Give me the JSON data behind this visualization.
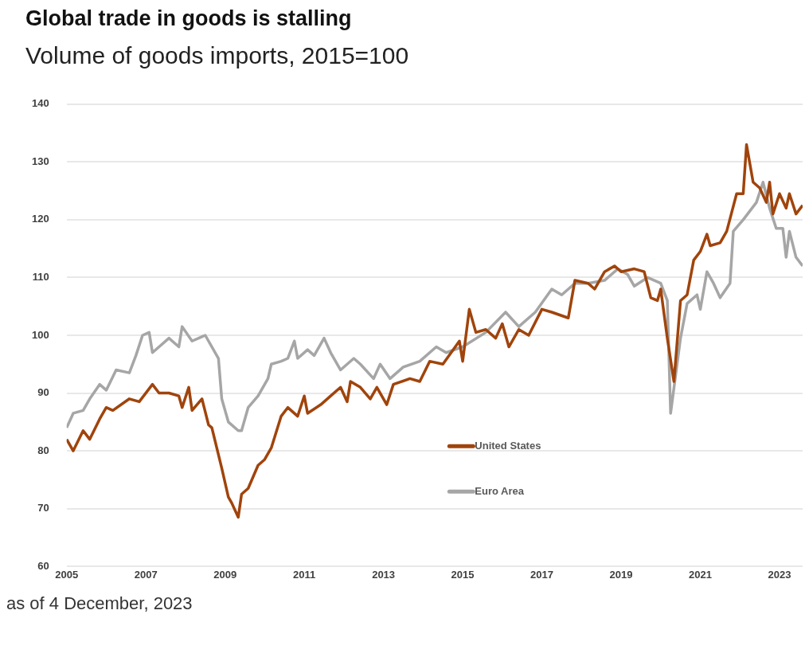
{
  "chart_data": {
    "type": "line",
    "title": "Global trade in goods is stalling",
    "subtitle": "Volume of goods imports, 2015=100",
    "xlim": [
      "2005-01",
      "2023-08"
    ],
    "xticks": [
      "2005",
      "2007",
      "2009",
      "2011",
      "2013",
      "2015",
      "2017",
      "2019",
      "2021",
      "2023"
    ],
    "ylim": [
      60,
      140
    ],
    "yticks": [
      60,
      70,
      80,
      90,
      100,
      110,
      120,
      130,
      140
    ],
    "grid": "y",
    "legend": "bottom",
    "marker": "none",
    "annotations": [
      "as of 4 December, 2023"
    ],
    "series": [
      {
        "name": "United States",
        "color": "#a0440c",
        "x": [
          "2005-01",
          "2005-03",
          "2005-06",
          "2005-08",
          "2005-11",
          "2006-01",
          "2006-03",
          "2006-08",
          "2006-11",
          "2007-03",
          "2007-05",
          "2007-08",
          "2007-11",
          "2007-12",
          "2008-02",
          "2008-03",
          "2008-06",
          "2008-08",
          "2008-09",
          "2008-12",
          "2009-02",
          "2009-03",
          "2009-05",
          "2009-06",
          "2009-08",
          "2009-11",
          "2010-01",
          "2010-03",
          "2010-06",
          "2010-08",
          "2010-11",
          "2011-01",
          "2011-02",
          "2011-06",
          "2011-09",
          "2011-12",
          "2012-02",
          "2012-03",
          "2012-06",
          "2012-09",
          "2012-11",
          "2013-02",
          "2013-04",
          "2013-09",
          "2013-12",
          "2014-03",
          "2014-07",
          "2014-12",
          "2015-01",
          "2015-03",
          "2015-05",
          "2015-08",
          "2015-11",
          "2016-01",
          "2016-03",
          "2016-06",
          "2016-09",
          "2017-01",
          "2017-04",
          "2017-09",
          "2017-11",
          "2018-03",
          "2018-05",
          "2018-08",
          "2018-11",
          "2019-01",
          "2019-05",
          "2019-08",
          "2019-10",
          "2019-12",
          "2020-01",
          "2020-03",
          "2020-05",
          "2020-07",
          "2020-09",
          "2020-11",
          "2021-01",
          "2021-03",
          "2021-04",
          "2021-07",
          "2021-09",
          "2021-12",
          "2022-02",
          "2022-03",
          "2022-05",
          "2022-07",
          "2022-09",
          "2022-10",
          "2022-11",
          "2023-01",
          "2023-03",
          "2023-04",
          "2023-06",
          "2023-08"
        ],
        "values": [
          82,
          80,
          83.5,
          82,
          85.5,
          87.5,
          87,
          89,
          88.5,
          91.5,
          90,
          90,
          89.5,
          87.5,
          91,
          87,
          89,
          84.5,
          84,
          77,
          72,
          71,
          68.5,
          72.5,
          73.5,
          77.5,
          78.5,
          80.5,
          86,
          87.5,
          86,
          89.5,
          86.5,
          88,
          89.5,
          91,
          88.5,
          92,
          91,
          89,
          91,
          88,
          91.5,
          92.5,
          92,
          95.5,
          95,
          99,
          95.5,
          104.5,
          100.5,
          101,
          99.5,
          102,
          98,
          101,
          100,
          104.5,
          104,
          103,
          109.5,
          109,
          108,
          111,
          112,
          111,
          111.5,
          111,
          106.5,
          106,
          108,
          99.5,
          92,
          106,
          107,
          113,
          114.5,
          117.5,
          115.5,
          116,
          118,
          124.5,
          124.5,
          133,
          126.5,
          125.5,
          123,
          126.5,
          121,
          124.5,
          122,
          124.5,
          121,
          122.5
        ]
      },
      {
        "name": "Euro Area",
        "color": "#a6a6a6",
        "x": [
          "2005-01",
          "2005-03",
          "2005-06",
          "2005-08",
          "2005-11",
          "2006-01",
          "2006-04",
          "2006-08",
          "2006-10",
          "2006-12",
          "2007-02",
          "2007-03",
          "2007-05",
          "2007-08",
          "2007-11",
          "2007-12",
          "2008-03",
          "2008-07",
          "2008-11",
          "2008-12",
          "2009-02",
          "2009-05",
          "2009-06",
          "2009-08",
          "2009-11",
          "2010-02",
          "2010-03",
          "2010-06",
          "2010-08",
          "2010-10",
          "2010-11",
          "2011-02",
          "2011-04",
          "2011-07",
          "2011-09",
          "2011-12",
          "2012-02",
          "2012-04",
          "2012-06",
          "2012-10",
          "2012-12",
          "2013-03",
          "2013-07",
          "2013-12",
          "2014-05",
          "2014-08",
          "2015-01",
          "2015-08",
          "2016-02",
          "2016-06",
          "2016-11",
          "2017-04",
          "2017-07",
          "2017-11",
          "2018-03",
          "2018-08",
          "2018-12",
          "2019-03",
          "2019-05",
          "2019-09",
          "2020-01",
          "2020-03",
          "2020-04",
          "2020-07",
          "2020-09",
          "2020-12",
          "2021-01",
          "2021-03",
          "2021-05",
          "2021-07",
          "2021-10",
          "2021-11",
          "2022-02",
          "2022-06",
          "2022-08",
          "2022-10",
          "2022-12",
          "2023-02",
          "2023-03",
          "2023-04",
          "2023-06",
          "2023-08"
        ],
        "values": [
          84,
          86.5,
          87,
          89,
          91.5,
          90.5,
          94,
          93.5,
          96.5,
          100,
          100.5,
          97,
          98,
          99.5,
          98,
          101.5,
          99,
          100,
          96,
          89,
          85,
          83.5,
          83.5,
          87.5,
          89.5,
          92.5,
          95,
          95.5,
          96,
          99,
          96,
          97.5,
          96.5,
          99.5,
          97,
          94,
          95,
          96,
          95,
          92.5,
          95,
          92.5,
          94.5,
          95.5,
          98,
          97,
          98,
          100.5,
          104,
          101.5,
          104,
          108,
          107,
          109,
          109,
          109.5,
          111.5,
          110.5,
          108.5,
          110,
          109,
          106,
          86.5,
          99.5,
          105.5,
          107,
          104.5,
          111,
          109,
          106.5,
          109,
          118,
          120,
          123,
          126.5,
          122,
          118.5,
          118.5,
          113.5,
          118,
          113.5,
          112
        ]
      }
    ]
  }
}
